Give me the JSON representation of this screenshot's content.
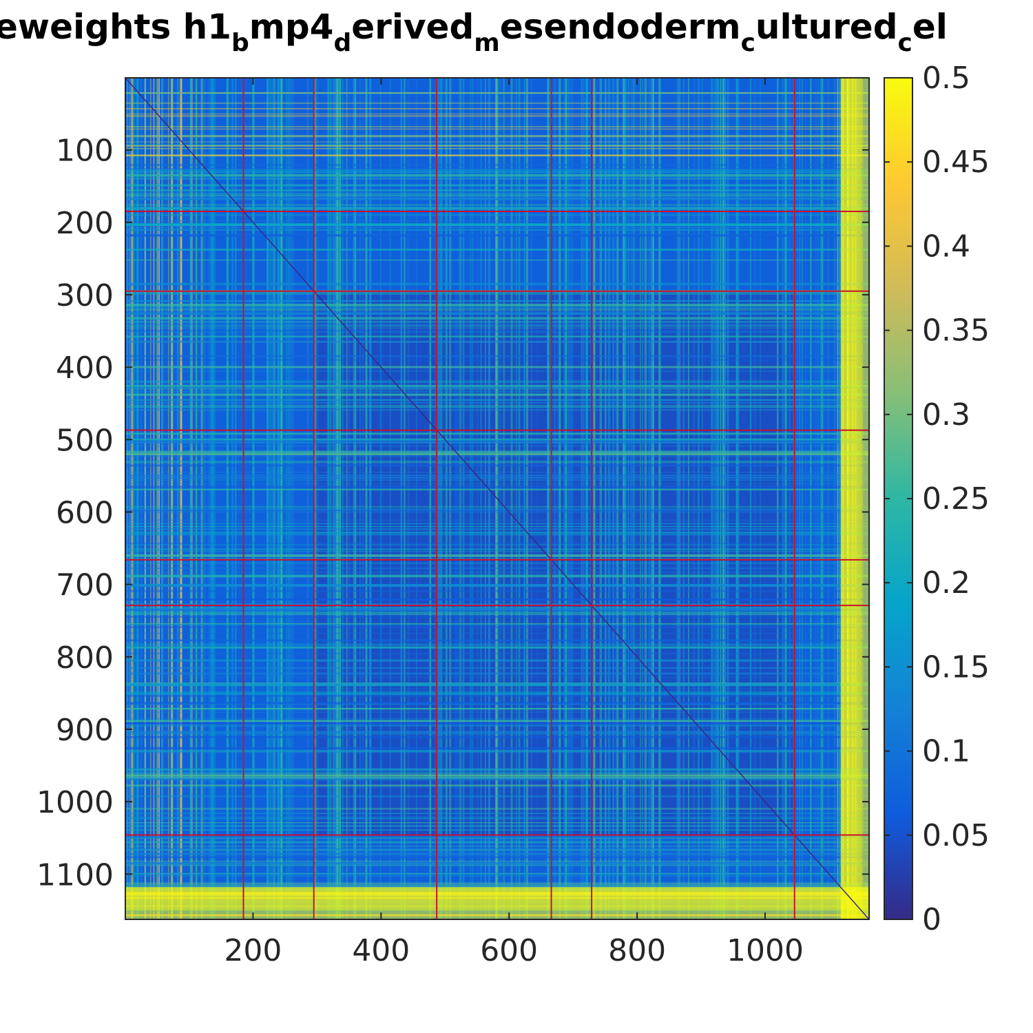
{
  "chart_data": {
    "type": "heatmap",
    "title": {
      "segments": [
        {
          "text": "eweights h1",
          "sub": false
        },
        {
          "text": "b",
          "sub": true
        },
        {
          "text": "mp4",
          "sub": false
        },
        {
          "text": "d",
          "sub": true
        },
        {
          "text": "erived",
          "sub": false
        },
        {
          "text": "m",
          "sub": true
        },
        {
          "text": "esendoderm",
          "sub": false
        },
        {
          "text": "c",
          "sub": true
        },
        {
          "text": "ultured",
          "sub": false
        },
        {
          "text": "c",
          "sub": true
        },
        {
          "text": "el",
          "sub": false
        }
      ]
    },
    "xlabel": "",
    "ylabel": "",
    "matrix_size": 1162,
    "xlim": [
      1,
      1162
    ],
    "ylim": [
      1,
      1162
    ],
    "y_reversed": true,
    "xticks": [
      200,
      400,
      600,
      800,
      1000
    ],
    "xtick_labels": [
      "200",
      "400",
      "600",
      "800",
      "1000"
    ],
    "yticks": [
      100,
      200,
      300,
      400,
      500,
      600,
      700,
      800,
      900,
      1000,
      1100
    ],
    "ytick_labels": [
      "100",
      "200",
      "300",
      "400",
      "500",
      "600",
      "700",
      "800",
      "900",
      "1000",
      "1100"
    ],
    "colormap": "parula",
    "clim": [
      0,
      0.5
    ],
    "colorbar": {
      "location": "right",
      "ticks": [
        0,
        0.05,
        0.1,
        0.15,
        0.2,
        0.25,
        0.3,
        0.35,
        0.4,
        0.45,
        0.5
      ],
      "tick_labels": [
        "0",
        "0.05",
        "0.1",
        "0.15",
        "0.2",
        "0.25",
        "0.3",
        "0.35",
        "0.4",
        "0.45",
        "0.5"
      ]
    },
    "block_boundaries": [
      185,
      295,
      487,
      666,
      729,
      1046
    ],
    "boundary_color": "#c8102e",
    "background_level_approx": 0.07,
    "grid": false
  }
}
